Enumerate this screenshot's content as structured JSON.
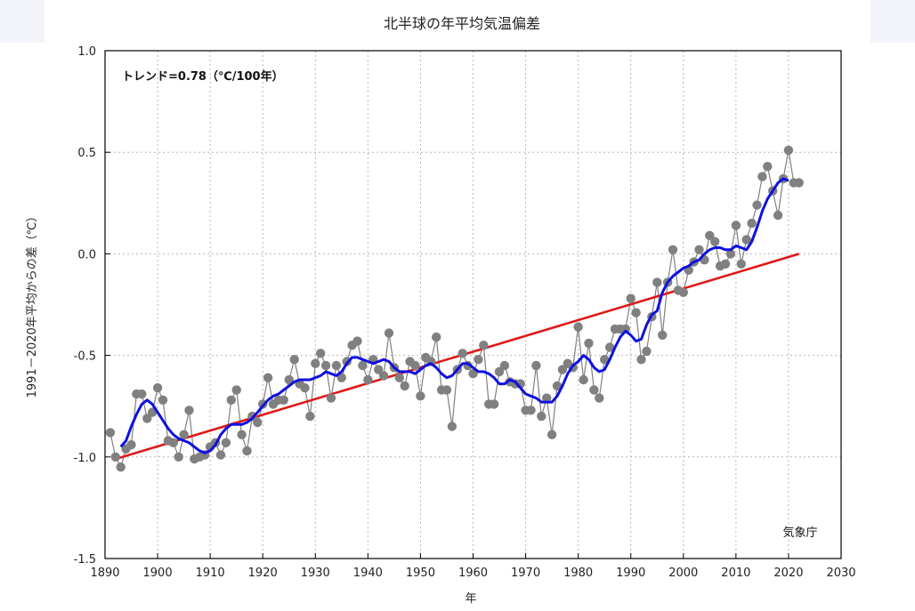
{
  "chart_data": {
    "type": "line",
    "title": "北半球の年平均気温偏差",
    "xlabel": "年",
    "ylabel": "1991－2020年平均からの差（℃）",
    "trend_label": "トレンド=0.78（℃/100年）",
    "credit": "気象庁",
    "xlim": [
      1890,
      2030
    ],
    "ylim": [
      -1.5,
      1.0
    ],
    "xticks": [
      1890,
      1900,
      1910,
      1920,
      1930,
      1940,
      1950,
      1960,
      1970,
      1980,
      1990,
      2000,
      2010,
      2020,
      2030
    ],
    "yticks": [
      1.0,
      0.5,
      0.0,
      -0.5,
      -1.0,
      -1.5
    ],
    "ytick_labels": [
      "1.0",
      "0.5",
      "0.0",
      "-0.5",
      "-1.0",
      "-1.5"
    ],
    "grid": true,
    "colors": {
      "annual": "#808080",
      "moving_average": "#1010e0",
      "trend": "#e01818"
    },
    "annual": {
      "x": [
        1891,
        1892,
        1893,
        1894,
        1895,
        1896,
        1897,
        1898,
        1899,
        1900,
        1901,
        1902,
        1903,
        1904,
        1905,
        1906,
        1907,
        1908,
        1909,
        1910,
        1911,
        1912,
        1913,
        1914,
        1915,
        1916,
        1917,
        1918,
        1919,
        1920,
        1921,
        1922,
        1923,
        1924,
        1925,
        1926,
        1927,
        1928,
        1929,
        1930,
        1931,
        1932,
        1933,
        1934,
        1935,
        1936,
        1937,
        1938,
        1939,
        1940,
        1941,
        1942,
        1943,
        1944,
        1945,
        1946,
        1947,
        1948,
        1949,
        1950,
        1951,
        1952,
        1953,
        1954,
        1955,
        1956,
        1957,
        1958,
        1959,
        1960,
        1961,
        1962,
        1963,
        1964,
        1965,
        1966,
        1967,
        1968,
        1969,
        1970,
        1971,
        1972,
        1973,
        1974,
        1975,
        1976,
        1977,
        1978,
        1979,
        1980,
        1981,
        1982,
        1983,
        1984,
        1985,
        1986,
        1987,
        1988,
        1989,
        1990,
        1991,
        1992,
        1993,
        1994,
        1995,
        1996,
        1997,
        1998,
        1999,
        2000,
        2001,
        2002,
        2003,
        2004,
        2005,
        2006,
        2007,
        2008,
        2009,
        2010,
        2011,
        2012,
        2013,
        2014,
        2015,
        2016,
        2017,
        2018,
        2019,
        2020,
        2021,
        2022
      ],
      "values": [
        -0.88,
        -1.0,
        -1.05,
        -0.96,
        -0.94,
        -0.69,
        -0.69,
        -0.81,
        -0.78,
        -0.66,
        -0.72,
        -0.92,
        -0.93,
        -1.0,
        -0.89,
        -0.77,
        -1.01,
        -1.0,
        -0.99,
        -0.95,
        -0.93,
        -0.99,
        -0.93,
        -0.72,
        -0.67,
        -0.89,
        -0.97,
        -0.8,
        -0.83,
        -0.74,
        -0.61,
        -0.74,
        -0.72,
        -0.72,
        -0.62,
        -0.52,
        -0.64,
        -0.66,
        -0.8,
        -0.54,
        -0.49,
        -0.55,
        -0.71,
        -0.55,
        -0.61,
        -0.53,
        -0.45,
        -0.43,
        -0.55,
        -0.62,
        -0.52,
        -0.57,
        -0.6,
        -0.39,
        -0.56,
        -0.61,
        -0.65,
        -0.53,
        -0.55,
        -0.7,
        -0.51,
        -0.53,
        -0.41,
        -0.67,
        -0.67,
        -0.85,
        -0.57,
        -0.49,
        -0.55,
        -0.59,
        -0.52,
        -0.45,
        -0.74,
        -0.74,
        -0.58,
        -0.55,
        -0.63,
        -0.64,
        -0.64,
        -0.77,
        -0.77,
        -0.55,
        -0.8,
        -0.71,
        -0.89,
        -0.65,
        -0.57,
        -0.54,
        -0.56,
        -0.36,
        -0.62,
        -0.44,
        -0.67,
        -0.71,
        -0.52,
        -0.46,
        -0.37,
        -0.37,
        -0.37,
        -0.22,
        -0.29,
        -0.52,
        -0.48,
        -0.31,
        -0.14,
        -0.4,
        -0.14,
        0.02,
        -0.18,
        -0.19,
        -0.08,
        -0.04,
        0.02,
        -0.03,
        0.09,
        0.06,
        -0.06,
        -0.05,
        0.0,
        0.14,
        -0.05,
        0.07,
        0.15,
        0.24,
        0.38,
        0.43,
        0.31,
        0.19,
        0.37,
        0.51,
        0.35,
        0.35
      ]
    },
    "moving_average": {
      "x": [
        1893,
        1894,
        1895,
        1896,
        1897,
        1898,
        1899,
        1900,
        1901,
        1902,
        1903,
        1904,
        1905,
        1906,
        1907,
        1908,
        1909,
        1910,
        1911,
        1912,
        1913,
        1914,
        1915,
        1916,
        1917,
        1918,
        1919,
        1920,
        1921,
        1922,
        1923,
        1924,
        1925,
        1926,
        1927,
        1928,
        1929,
        1930,
        1931,
        1932,
        1933,
        1934,
        1935,
        1936,
        1937,
        1938,
        1939,
        1940,
        1941,
        1942,
        1943,
        1944,
        1945,
        1946,
        1947,
        1948,
        1949,
        1950,
        1951,
        1952,
        1953,
        1954,
        1955,
        1956,
        1957,
        1958,
        1959,
        1960,
        1961,
        1962,
        1963,
        1964,
        1965,
        1966,
        1967,
        1968,
        1969,
        1970,
        1971,
        1972,
        1973,
        1974,
        1975,
        1976,
        1977,
        1978,
        1979,
        1980,
        1981,
        1982,
        1983,
        1984,
        1985,
        1986,
        1987,
        1988,
        1989,
        1990,
        1991,
        1992,
        1993,
        1994,
        1995,
        1996,
        1997,
        1998,
        1999,
        2000,
        2001,
        2002,
        2003,
        2004,
        2005,
        2006,
        2007,
        2008,
        2009,
        2010,
        2011,
        2012,
        2013,
        2014,
        2015,
        2016,
        2017,
        2018,
        2019,
        2020
      ],
      "values": [
        -0.95,
        -0.92,
        -0.85,
        -0.79,
        -0.74,
        -0.72,
        -0.74,
        -0.78,
        -0.82,
        -0.86,
        -0.89,
        -0.91,
        -0.92,
        -0.93,
        -0.95,
        -0.97,
        -0.98,
        -0.97,
        -0.94,
        -0.89,
        -0.86,
        -0.84,
        -0.84,
        -0.84,
        -0.83,
        -0.81,
        -0.78,
        -0.75,
        -0.72,
        -0.7,
        -0.69,
        -0.67,
        -0.65,
        -0.63,
        -0.62,
        -0.62,
        -0.62,
        -0.61,
        -0.6,
        -0.58,
        -0.59,
        -0.6,
        -0.58,
        -0.54,
        -0.51,
        -0.51,
        -0.52,
        -0.53,
        -0.54,
        -0.53,
        -0.52,
        -0.53,
        -0.56,
        -0.58,
        -0.58,
        -0.58,
        -0.59,
        -0.57,
        -0.55,
        -0.54,
        -0.56,
        -0.59,
        -0.61,
        -0.6,
        -0.57,
        -0.54,
        -0.54,
        -0.56,
        -0.58,
        -0.58,
        -0.59,
        -0.61,
        -0.64,
        -0.64,
        -0.62,
        -0.63,
        -0.66,
        -0.69,
        -0.7,
        -0.71,
        -0.73,
        -0.73,
        -0.73,
        -0.7,
        -0.65,
        -0.59,
        -0.55,
        -0.53,
        -0.5,
        -0.52,
        -0.56,
        -0.58,
        -0.57,
        -0.52,
        -0.46,
        -0.41,
        -0.38,
        -0.4,
        -0.43,
        -0.42,
        -0.35,
        -0.3,
        -0.28,
        -0.19,
        -0.14,
        -0.11,
        -0.09,
        -0.07,
        -0.06,
        -0.04,
        -0.03,
        0.0,
        0.02,
        0.03,
        0.03,
        0.02,
        0.02,
        0.04,
        0.03,
        0.02,
        0.06,
        0.13,
        0.21,
        0.27,
        0.31,
        0.35,
        0.37,
        0.36
      ]
    },
    "trend": {
      "x": [
        1892,
        2022
      ],
      "values": [
        -1.01,
        0.0
      ]
    }
  }
}
